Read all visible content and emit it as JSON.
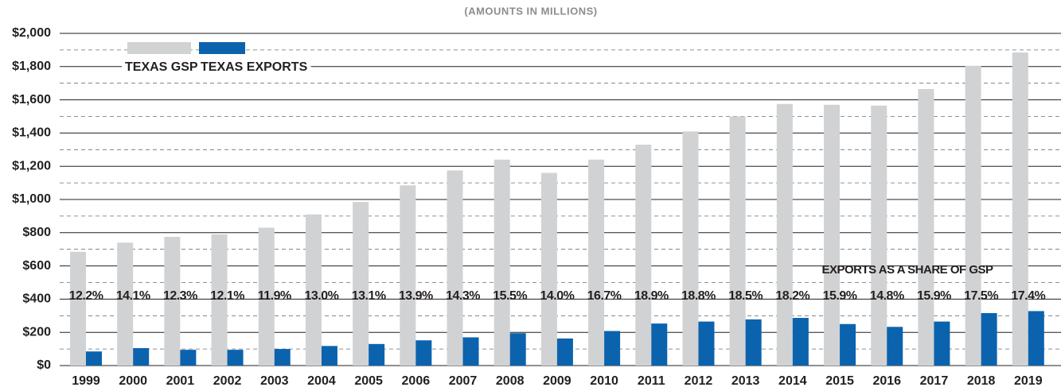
{
  "chart_data": {
    "type": "bar",
    "subtitle": "(AMOUNTS IN MILLIONS)",
    "categories": [
      "1999",
      "2000",
      "2001",
      "2002",
      "2003",
      "2004",
      "2005",
      "2006",
      "2007",
      "2008",
      "2009",
      "2010",
      "2011",
      "2012",
      "2013",
      "2014",
      "2015",
      "2016",
      "2017",
      "2018",
      "2019"
    ],
    "series": [
      {
        "name": "TEXAS GSP",
        "color": "#d1d2d4",
        "values": [
          685,
          740,
          775,
          790,
          830,
          910,
          985,
          1085,
          1175,
          1240,
          1160,
          1240,
          1330,
          1410,
          1500,
          1575,
          1570,
          1565,
          1665,
          1805,
          1885
        ]
      },
      {
        "name": "TEXAS EXPORTS",
        "color": "#0b63ae",
        "values": [
          85,
          105,
          95,
          95,
          100,
          118,
          130,
          152,
          170,
          195,
          163,
          208,
          253,
          265,
          278,
          287,
          250,
          233,
          265,
          316,
          328
        ]
      }
    ],
    "share": {
      "title": "EXPORTS AS A SHARE OF GSP",
      "values": [
        12.2,
        14.1,
        12.3,
        12.1,
        11.9,
        13.0,
        13.1,
        13.9,
        14.3,
        15.5,
        14.0,
        16.7,
        18.9,
        18.8,
        18.5,
        18.2,
        15.9,
        14.8,
        15.9,
        17.5,
        17.4
      ],
      "value_labels": [
        "12.2%",
        "14.1%",
        "12.3%",
        "12.1%",
        "11.9%",
        "13.0%",
        "13.1%",
        "13.9%",
        "14.3%",
        "15.5%",
        "14.0%",
        "16.7%",
        "18.9%",
        "18.8%",
        "18.5%",
        "18.2%",
        "15.9%",
        "14.8%",
        "15.9%",
        "17.5%",
        "17.4%"
      ]
    },
    "ylim": [
      0,
      2000
    ],
    "yticks": [
      {
        "value": 0,
        "label": "$0"
      },
      {
        "value": 200,
        "label": "$200"
      },
      {
        "value": 400,
        "label": "$400"
      },
      {
        "value": 600,
        "label": "$600"
      },
      {
        "value": 800,
        "label": "$800"
      },
      {
        "value": 1000,
        "label": "$1,000"
      },
      {
        "value": 1200,
        "label": "$1,200"
      },
      {
        "value": 1400,
        "label": "$1,400"
      },
      {
        "value": 1600,
        "label": "$1,600"
      },
      {
        "value": 1800,
        "label": "$1,800"
      },
      {
        "value": 2000,
        "label": "$2,000"
      }
    ],
    "minor_yticks": [
      100,
      300,
      500,
      700,
      900,
      1100,
      1300,
      1500,
      1700,
      1900
    ],
    "grid": true
  }
}
